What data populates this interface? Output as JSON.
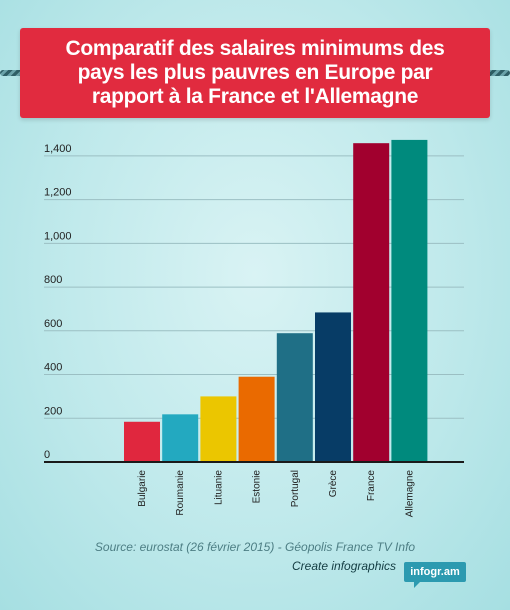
{
  "header": {
    "title": "Comparatif des salaires minimums des pays les plus pauvres en Europe par rapport à la France et l'Allemagne"
  },
  "footer": {
    "source": "Source:  eurostat (26 février 2015) - Géopolis France TV Info",
    "create_link": "Create infographics",
    "brand": "infogr.am"
  },
  "colors": {
    "banner": "#e12b3f",
    "badge": "#2c9ab0"
  },
  "chart_data": {
    "type": "bar",
    "title": "Comparatif des salaires minimums des pays les plus pauvres en Europe par rapport à la France et l'Allemagne",
    "xlabel": "",
    "ylabel": "",
    "ylim": [
      0,
      1500
    ],
    "yticks": [
      0,
      200,
      400,
      600,
      800,
      1000,
      1200,
      1400
    ],
    "ytick_labels": [
      "0",
      "200",
      "400",
      "600",
      "800",
      "1,000",
      "1,200",
      "1,400"
    ],
    "grid": true,
    "categories": [
      "Bulgarie",
      "Roumanie",
      "Lituanie",
      "Estonie",
      "Portugal",
      "Grèce",
      "France",
      "Allemagne"
    ],
    "values": [
      184,
      218,
      300,
      390,
      589,
      684,
      1458,
      1473
    ],
    "colors": [
      "#e0273e",
      "#23a9c0",
      "#ebc600",
      "#ea6a00",
      "#1f6f86",
      "#073c66",
      "#a1002e",
      "#008a7d"
    ]
  }
}
